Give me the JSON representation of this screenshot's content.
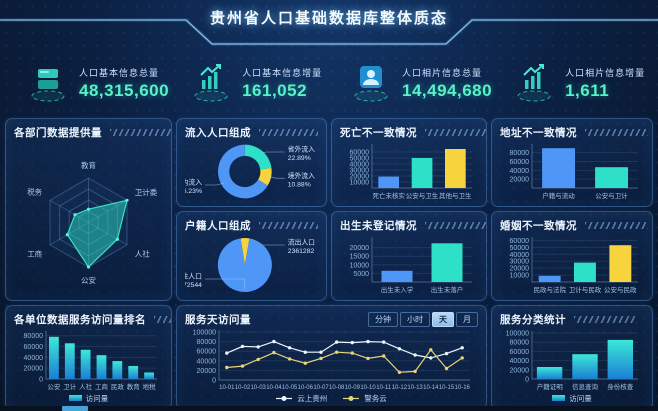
{
  "header": {
    "title": "贵州省人口基础数据库整体质态"
  },
  "kpis": [
    {
      "label": "人口基本信息总量",
      "value": "48,315,600",
      "icon": "database-icon"
    },
    {
      "label": "人口基本信息增量",
      "value": "161,052",
      "icon": "trend-up-icon"
    },
    {
      "label": "人口相片信息总量",
      "value": "14,494,680",
      "icon": "person-photo-icon"
    },
    {
      "label": "人口相片信息增量",
      "value": "1,611",
      "icon": "trend-up-icon"
    }
  ],
  "colors": {
    "accent_blue": "#4f97f7",
    "accent_teal": "#2ee0c8",
    "accent_yellow": "#f7d33e",
    "kpi_value": "#58f2c8",
    "line_white": "#eef6ff",
    "line_yellow": "#e8d478"
  },
  "chart_data": [
    {
      "id": "radar",
      "type": "radar",
      "title": "各部门数据提供量",
      "categories": [
        "教育",
        "卫计委",
        "人社",
        "公安",
        "工商",
        "税务"
      ],
      "values": [
        30,
        100,
        75,
        100,
        55,
        35
      ],
      "max": 100,
      "levels": 4
    },
    {
      "id": "inflow",
      "type": "pie",
      "title": "流入人口组成",
      "inner_ratio": 0.58,
      "start_offset": 0,
      "slices": [
        {
          "name": "省外流入",
          "pct": 22.89,
          "display": "22.89%",
          "color": "#2ee0c8",
          "label_side": "right"
        },
        {
          "name": "境外流入",
          "pct": 10.88,
          "display": "10.88%",
          "color": "#f7d33e",
          "label_side": "right"
        },
        {
          "name": "省内流入",
          "pct": 66.23,
          "display": "66.23%",
          "color": "#4f97f7",
          "label_side": "left"
        }
      ]
    },
    {
      "id": "hukou",
      "type": "pie",
      "title": "户籍人口组成",
      "inner_ratio": 0,
      "start_offset": 9,
      "slices": [
        {
          "name": "流出人口",
          "pct": 5.21,
          "display": "2361282",
          "color": "#f7d33e",
          "label_side": "right"
        },
        {
          "name": "常住人口",
          "pct": 94.79,
          "display": "42972544",
          "color": "#4f97f7",
          "label_side": "left"
        }
      ]
    },
    {
      "id": "death",
      "type": "bar",
      "title": "死亡不一致情况",
      "categories": [
        "死亡未核实",
        "公安与卫生",
        "其他与卫生"
      ],
      "values": [
        19000,
        50000,
        65000
      ],
      "colors": [
        "#4f97f7",
        "#2ee0c8",
        "#f7d33e"
      ],
      "ylim": [
        0,
        70000
      ],
      "yticks": [
        10000,
        20000,
        30000,
        40000,
        50000,
        60000
      ],
      "bar_max": 28
    },
    {
      "id": "birth",
      "type": "bar",
      "title": "出生未登记情况",
      "categories": [
        "出生未入学",
        "出生未落户"
      ],
      "values": [
        6500,
        22500
      ],
      "colors": [
        "#4f97f7",
        "#2ee0c8"
      ],
      "ylim": [
        0,
        25000
      ],
      "yticks": [
        5000,
        10000,
        15000,
        20000
      ],
      "bar_max": 36
    },
    {
      "id": "address",
      "type": "bar",
      "title": "地址不一致情况",
      "categories": [
        "户籍与流动",
        "公安与卫计"
      ],
      "values": [
        90000,
        47000
      ],
      "colors": [
        "#4f97f7",
        "#2ee0c8"
      ],
      "ylim": [
        0,
        95000
      ],
      "yticks": [
        20000,
        40000,
        60000,
        80000
      ],
      "bar_max": 34
    },
    {
      "id": "marriage",
      "type": "bar",
      "title": "婚姻不一致情况",
      "categories": [
        "民政与法院",
        "卫计与民政",
        "公安与民政"
      ],
      "values": [
        9000,
        28000,
        53000
      ],
      "colors": [
        "#4f97f7",
        "#2ee0c8",
        "#f7d33e"
      ],
      "ylim": [
        0,
        62000
      ],
      "yticks": [
        10000,
        20000,
        30000,
        40000,
        50000,
        60000
      ],
      "bar_max": 28
    },
    {
      "id": "rank",
      "type": "bar",
      "title": "各单位数据服务访问量排名",
      "legend": "访问量",
      "categories": [
        "公安",
        "卫计",
        "人社",
        "工商",
        "民政",
        "教育",
        "地税"
      ],
      "values": [
        78000,
        66000,
        54000,
        44000,
        33000,
        24000,
        12000
      ],
      "gradient": [
        "#3ce8d8",
        "#1b7fd4"
      ],
      "ylim": [
        0,
        85000
      ],
      "yticks": [
        0,
        20000,
        40000,
        60000,
        80000
      ],
      "bar_max": 12,
      "cat_font": 6.5
    },
    {
      "id": "daily",
      "type": "line",
      "title": "服务天访问量",
      "tabs": [
        "分钟",
        "小时",
        "天",
        "月"
      ],
      "active_tab": "天",
      "x": [
        "10-01",
        "10-02",
        "10-03",
        "10-04",
        "10-05",
        "10-06",
        "10-07",
        "10-08",
        "10-09",
        "10-10",
        "10-11",
        "10-12",
        "10-13",
        "10-14",
        "10-15",
        "10-16"
      ],
      "series": [
        {
          "name": "云上贵州",
          "color": "#eef6ff",
          "values": [
            56000,
            70000,
            69000,
            80000,
            67000,
            58000,
            58000,
            79000,
            78000,
            80000,
            79000,
            65000,
            52000,
            46000,
            55000,
            67000
          ]
        },
        {
          "name": "警务云",
          "color": "#e8d478",
          "values": [
            26000,
            29000,
            43000,
            57000,
            44000,
            35000,
            45000,
            58000,
            56000,
            45000,
            50000,
            16000,
            18000,
            63000,
            24000,
            46000
          ]
        }
      ],
      "ylim": [
        0,
        100000
      ],
      "yticks": [
        0,
        20000,
        40000,
        60000,
        80000,
        100000
      ]
    },
    {
      "id": "category",
      "type": "bar",
      "title": "服务分类统计",
      "legend": "访问量",
      "categories": [
        "户籍证明",
        "信息查询",
        "身份核查"
      ],
      "values": [
        26000,
        54000,
        85000
      ],
      "gradient": [
        "#3ce8d8",
        "#1b7fd4"
      ],
      "ylim": [
        0,
        100000
      ],
      "yticks": [
        0,
        20000,
        40000,
        60000,
        80000,
        100000
      ],
      "bar_max": 26,
      "bar_ratio": 0.72
    }
  ]
}
